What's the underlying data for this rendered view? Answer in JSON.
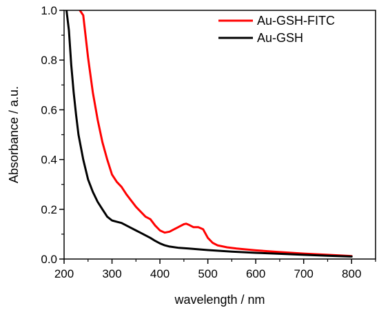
{
  "chart_data": {
    "type": "line",
    "title": "",
    "xlabel": "wavelength / nm",
    "ylabel": "Absorbance / a.u.",
    "xlim": [
      200,
      850
    ],
    "ylim": [
      0.0,
      1.0
    ],
    "x_ticks": [
      "200",
      "300",
      "400",
      "500",
      "600",
      "700",
      "800"
    ],
    "y_ticks": [
      "0.0",
      "0.2",
      "0.4",
      "0.6",
      "0.8",
      "1.0"
    ],
    "grid": false,
    "legend_position": "top-right",
    "series": [
      {
        "name": "Au-GSH-FITC",
        "color": "#ff0000",
        "x": [
          233,
          240,
          250,
          260,
          270,
          280,
          290,
          300,
          310,
          320,
          330,
          340,
          350,
          360,
          370,
          380,
          390,
          400,
          410,
          420,
          430,
          440,
          450,
          455,
          460,
          470,
          480,
          490,
          500,
          510,
          520,
          540,
          560,
          600,
          650,
          700,
          750,
          800
        ],
        "y": [
          1.0,
          0.98,
          0.81,
          0.67,
          0.56,
          0.47,
          0.4,
          0.34,
          0.31,
          0.29,
          0.26,
          0.235,
          0.21,
          0.19,
          0.17,
          0.16,
          0.135,
          0.115,
          0.106,
          0.11,
          0.12,
          0.13,
          0.14,
          0.142,
          0.138,
          0.128,
          0.128,
          0.12,
          0.085,
          0.065,
          0.055,
          0.047,
          0.042,
          0.035,
          0.028,
          0.022,
          0.017,
          0.012
        ]
      },
      {
        "name": "Au-GSH",
        "color": "#000000",
        "x": [
          205,
          210,
          215,
          220,
          225,
          230,
          240,
          250,
          260,
          270,
          280,
          290,
          300,
          310,
          320,
          330,
          340,
          350,
          360,
          370,
          380,
          390,
          400,
          410,
          420,
          440,
          460,
          480,
          500,
          550,
          600,
          650,
          700,
          750,
          800
        ],
        "y": [
          1.0,
          0.92,
          0.78,
          0.67,
          0.58,
          0.5,
          0.4,
          0.32,
          0.27,
          0.23,
          0.2,
          0.17,
          0.155,
          0.15,
          0.145,
          0.135,
          0.125,
          0.115,
          0.105,
          0.095,
          0.085,
          0.073,
          0.063,
          0.055,
          0.05,
          0.045,
          0.042,
          0.039,
          0.036,
          0.03,
          0.025,
          0.021,
          0.017,
          0.013,
          0.01
        ]
      }
    ]
  }
}
